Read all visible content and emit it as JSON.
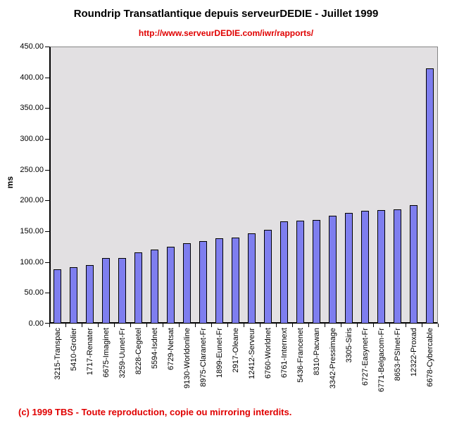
{
  "header": {
    "title": "Roundrip Transatlantique depuis serveurDEDIE - Juillet 1999",
    "subtitle_url": "http://www.serveurDEDIE.com/iwr/rapports/"
  },
  "footer": {
    "copyright": "(c) 1999 TBS - Toute reproduction, copie ou mirroring interdits."
  },
  "colors": {
    "red": "#e00000",
    "bar_fill": "#7e7eef",
    "bar_border": "#000000",
    "plot_background": "#e2e0e2",
    "frame_gray": "#848484",
    "axis_black": "#000000"
  },
  "chart_data": {
    "type": "bar",
    "title": "Roundrip Transatlantique depuis serveurDEDIE - Juillet 1999",
    "subtitle": "http://www.serveurDEDIE.com/iwr/rapports/",
    "xlabel": "",
    "ylabel": "ms",
    "ylim": [
      0,
      450
    ],
    "ytick_step": 50,
    "ytick_decimals": 2,
    "grid": false,
    "legend": false,
    "plot_bg": "#e2e0e2",
    "bar_color": "#7e7eef",
    "categories": [
      "3215-Transpac",
      "5410-Grolier",
      "1717-Renater",
      "6675-Imaginet",
      "3259-Uunet-Fr",
      "8228-Cegetel",
      "5594-Isdnet",
      "6729-Netsat",
      "9130-Worldonline",
      "8975-Claranet-Fr",
      "1899-Eunet-Fr",
      "2917-Oleane",
      "12412-Serveur",
      "6760-Worldnet",
      "6761-Internext",
      "5436-Francenet",
      "8310-Pacwan",
      "3342-Pressimage",
      "3305-Siris",
      "6727-Easynet-Fr",
      "6771-Belgacom-Fr",
      "8653-PSInet-Fr",
      "12322-Proxad",
      "6678-Cybercable"
    ],
    "values": [
      88,
      92,
      95,
      106,
      107,
      116,
      120,
      125,
      131,
      134,
      139,
      140,
      146,
      152,
      166,
      167,
      168,
      175,
      180,
      183,
      184,
      185,
      192,
      415
    ],
    "unit": "ms"
  }
}
